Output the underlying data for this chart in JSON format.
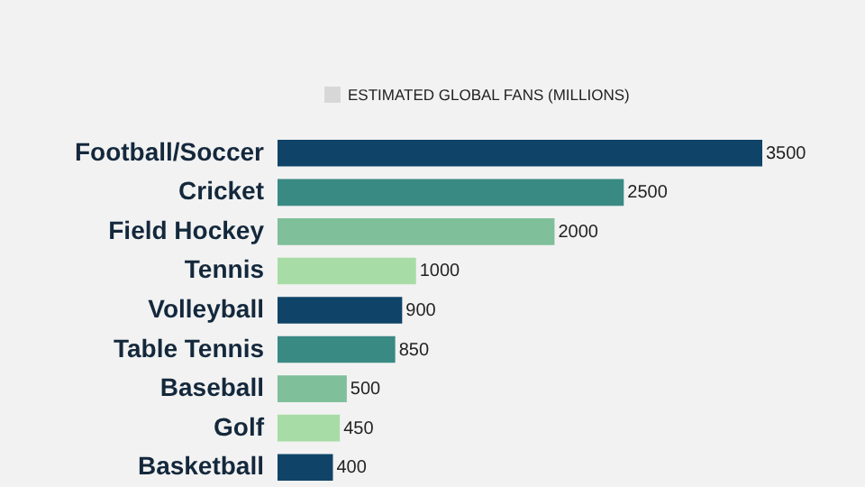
{
  "chart_data": {
    "type": "bar",
    "orientation": "horizontal",
    "data_labels": true,
    "legend": "top",
    "categories": [
      "Football/Soccer",
      "Cricket",
      "Field Hockey",
      "Tennis",
      "Volleyball",
      "Table Tennis",
      "Baseball",
      "Golf",
      "Basketball"
    ],
    "series": [
      {
        "name": "ESTIMATED GLOBAL FANS (MILLIONS)",
        "color": "#cccccc",
        "colors": [
          "#0f4468",
          "#3a8a84",
          "#7fbf9a",
          "#a8dca6",
          "#0f4468",
          "#3a8a84",
          "#7fbf9a",
          "#a8dca6",
          "#0f4468"
        ],
        "values": [
          3500,
          2500,
          2000,
          1000,
          900,
          850,
          500,
          450,
          400
        ]
      }
    ]
  }
}
